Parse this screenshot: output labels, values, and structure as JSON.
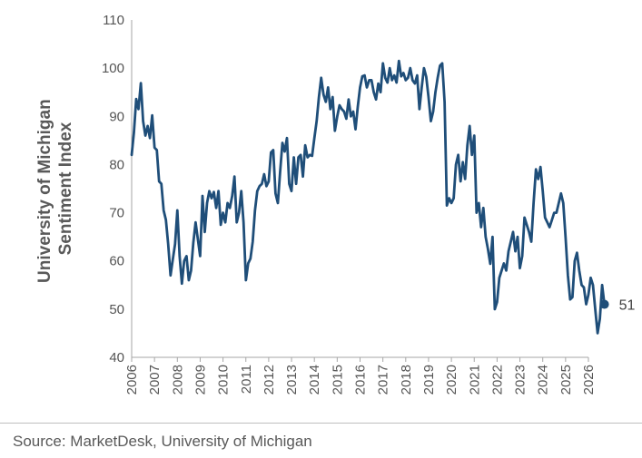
{
  "chart_data": {
    "type": "line",
    "title": "",
    "xlabel": "",
    "ylabel": "University of Michigan Sentiment Index",
    "ylim": [
      40,
      110
    ],
    "yticks": [
      40,
      50,
      60,
      70,
      80,
      90,
      100,
      110
    ],
    "xlim": [
      2006,
      2026
    ],
    "xticks": [
      "2006",
      "2007",
      "2008",
      "2009",
      "2010",
      "2011",
      "2012",
      "2013",
      "2014",
      "2015",
      "2016",
      "2017",
      "2018",
      "2019",
      "2020",
      "2021",
      "2022",
      "2023",
      "2024",
      "2025",
      "2026"
    ],
    "grid": false,
    "line_color": "#1f4e79",
    "end_label": "51",
    "series": [
      {
        "values": [
          [
            2006.0,
            82
          ],
          [
            2006.1,
            86.7
          ],
          [
            2006.2,
            93.6
          ],
          [
            2006.3,
            91.5
          ],
          [
            2006.4,
            96.9
          ],
          [
            2006.5,
            89
          ],
          [
            2006.6,
            86
          ],
          [
            2006.7,
            88
          ],
          [
            2006.8,
            85.5
          ],
          [
            2006.9,
            90.2
          ],
          [
            2007.0,
            83.5
          ],
          [
            2007.1,
            83
          ],
          [
            2007.2,
            76.5
          ],
          [
            2007.3,
            76
          ],
          [
            2007.4,
            70.5
          ],
          [
            2007.5,
            68.5
          ],
          [
            2007.6,
            63.5
          ],
          [
            2007.7,
            57
          ],
          [
            2007.8,
            60.3
          ],
          [
            2007.9,
            63.5
          ],
          [
            2008.0,
            70.5
          ],
          [
            2008.1,
            61
          ],
          [
            2008.2,
            55.3
          ],
          [
            2008.3,
            60
          ],
          [
            2008.4,
            61
          ],
          [
            2008.5,
            56
          ],
          [
            2008.6,
            58
          ],
          [
            2008.7,
            63.8
          ],
          [
            2008.8,
            68
          ],
          [
            2008.9,
            64.5
          ],
          [
            2009.0,
            61
          ],
          [
            2009.1,
            73.5
          ],
          [
            2009.2,
            66
          ],
          [
            2009.3,
            72
          ],
          [
            2009.4,
            74.5
          ],
          [
            2009.5,
            73
          ],
          [
            2009.6,
            74.3
          ],
          [
            2009.7,
            71
          ],
          [
            2009.8,
            74.5
          ],
          [
            2009.9,
            67.5
          ],
          [
            2010.0,
            70
          ],
          [
            2010.1,
            68
          ],
          [
            2010.2,
            72
          ],
          [
            2010.3,
            71
          ],
          [
            2010.4,
            73.5
          ],
          [
            2010.5,
            77.5
          ],
          [
            2010.6,
            68
          ],
          [
            2010.7,
            70
          ],
          [
            2010.8,
            74.5
          ],
          [
            2010.9,
            68
          ],
          [
            2011.0,
            56
          ],
          [
            2011.1,
            59.5
          ],
          [
            2011.2,
            60.5
          ],
          [
            2011.3,
            64
          ],
          [
            2011.4,
            70.5
          ],
          [
            2011.5,
            74.5
          ],
          [
            2011.6,
            75.5
          ],
          [
            2011.7,
            76
          ],
          [
            2011.8,
            78
          ],
          [
            2011.9,
            75.5
          ],
          [
            2012.0,
            76.5
          ],
          [
            2012.1,
            82.5
          ],
          [
            2012.2,
            83
          ],
          [
            2012.3,
            74
          ],
          [
            2012.4,
            72
          ],
          [
            2012.5,
            78.5
          ],
          [
            2012.6,
            84.5
          ],
          [
            2012.7,
            82.7
          ],
          [
            2012.8,
            85.5
          ],
          [
            2012.9,
            76
          ],
          [
            2013.0,
            74.5
          ],
          [
            2013.1,
            81.5
          ],
          [
            2013.2,
            76
          ],
          [
            2013.3,
            81.5
          ],
          [
            2013.4,
            82
          ],
          [
            2013.5,
            77.5
          ],
          [
            2013.6,
            84
          ],
          [
            2013.7,
            81.5
          ],
          [
            2013.8,
            82
          ],
          [
            2013.9,
            81.8
          ],
          [
            2014.0,
            85.5
          ],
          [
            2014.1,
            89
          ],
          [
            2014.2,
            94
          ],
          [
            2014.3,
            98
          ],
          [
            2014.4,
            94.5
          ],
          [
            2014.5,
            93
          ],
          [
            2014.6,
            96
          ],
          [
            2014.7,
            91.5
          ],
          [
            2014.8,
            94
          ],
          [
            2014.9,
            87
          ],
          [
            2015.0,
            90
          ],
          [
            2015.1,
            92.3
          ],
          [
            2015.2,
            91.5
          ],
          [
            2015.3,
            91
          ],
          [
            2015.4,
            89.5
          ],
          [
            2015.5,
            93.5
          ],
          [
            2015.6,
            90
          ],
          [
            2015.7,
            91
          ],
          [
            2015.8,
            87.3
          ],
          [
            2015.9,
            92
          ],
          [
            2016.0,
            96
          ],
          [
            2016.1,
            98.3
          ],
          [
            2016.2,
            98.5
          ],
          [
            2016.3,
            96
          ],
          [
            2016.4,
            97.5
          ],
          [
            2016.5,
            97.5
          ],
          [
            2016.6,
            95
          ],
          [
            2016.7,
            93.5
          ],
          [
            2016.8,
            96.8
          ],
          [
            2016.9,
            95
          ],
          [
            2017.0,
            101
          ],
          [
            2017.1,
            98
          ],
          [
            2017.2,
            97
          ],
          [
            2017.3,
            100
          ],
          [
            2017.4,
            97.5
          ],
          [
            2017.5,
            98.5
          ],
          [
            2017.6,
            97
          ],
          [
            2017.7,
            101.5
          ],
          [
            2017.8,
            98.3
          ],
          [
            2017.9,
            99
          ],
          [
            2018.0,
            97.5
          ],
          [
            2018.1,
            98
          ],
          [
            2018.2,
            100
          ],
          [
            2018.3,
            97.5
          ],
          [
            2018.4,
            96.8
          ],
          [
            2018.5,
            98.5
          ],
          [
            2018.6,
            91.5
          ],
          [
            2018.7,
            96
          ],
          [
            2018.8,
            100
          ],
          [
            2018.9,
            98.2
          ],
          [
            2019.0,
            94
          ],
          [
            2019.1,
            89
          ],
          [
            2019.2,
            91
          ],
          [
            2019.3,
            95
          ],
          [
            2019.4,
            98
          ],
          [
            2019.5,
            100.5
          ],
          [
            2019.6,
            101
          ],
          [
            2019.7,
            93
          ],
          [
            2019.8,
            71.5
          ],
          [
            2019.9,
            73
          ],
          [
            2020.0,
            72
          ],
          [
            2020.1,
            73
          ],
          [
            2020.2,
            80
          ],
          [
            2020.3,
            82
          ],
          [
            2020.4,
            76.5
          ],
          [
            2020.5,
            80.5
          ],
          [
            2020.6,
            77
          ],
          [
            2020.7,
            84
          ],
          [
            2020.8,
            88
          ],
          [
            2020.9,
            82
          ],
          [
            2021.0,
            86
          ],
          [
            2021.1,
            70
          ],
          [
            2021.2,
            72
          ],
          [
            2021.3,
            67
          ],
          [
            2021.4,
            71
          ],
          [
            2021.5,
            65
          ],
          [
            2021.6,
            62.5
          ],
          [
            2021.7,
            59.4
          ],
          [
            2021.8,
            65
          ],
          [
            2021.9,
            50
          ],
          [
            2022.0,
            51.5
          ],
          [
            2022.1,
            56.5
          ],
          [
            2022.2,
            58
          ],
          [
            2022.3,
            59.5
          ],
          [
            2022.4,
            58
          ],
          [
            2022.5,
            62
          ],
          [
            2022.6,
            64
          ],
          [
            2022.7,
            66
          ],
          [
            2022.8,
            62
          ],
          [
            2022.9,
            65
          ],
          [
            2023.0,
            58.5
          ],
          [
            2023.1,
            61
          ],
          [
            2023.2,
            69
          ],
          [
            2023.3,
            67.5
          ],
          [
            2023.4,
            66
          ],
          [
            2023.5,
            64
          ],
          [
            2023.6,
            72
          ],
          [
            2023.7,
            79
          ],
          [
            2023.8,
            77
          ],
          [
            2023.9,
            79.5
          ],
          [
            2024.0,
            74.5
          ],
          [
            2024.1,
            69
          ],
          [
            2024.2,
            68
          ],
          [
            2024.3,
            67
          ],
          [
            2024.4,
            68.5
          ],
          [
            2024.5,
            70
          ],
          [
            2024.6,
            70
          ],
          [
            2024.7,
            72
          ],
          [
            2024.8,
            74
          ],
          [
            2024.9,
            72
          ],
          [
            2025.0,
            65
          ],
          [
            2025.1,
            57
          ],
          [
            2025.2,
            52
          ],
          [
            2025.3,
            52.5
          ],
          [
            2025.4,
            60
          ],
          [
            2025.5,
            61.7
          ],
          [
            2025.6,
            58
          ],
          [
            2025.7,
            55
          ],
          [
            2025.8,
            54.5
          ],
          [
            2025.9,
            51
          ],
          [
            2026.0,
            53
          ],
          [
            2026.1,
            56.5
          ],
          [
            2026.2,
            55
          ],
          [
            2026.3,
            50
          ],
          [
            2026.4,
            45
          ],
          [
            2026.5,
            48
          ],
          [
            2026.6,
            55
          ],
          [
            2026.7,
            51
          ]
        ]
      }
    ]
  },
  "source": "Source: MarketDesk, University of Michigan"
}
